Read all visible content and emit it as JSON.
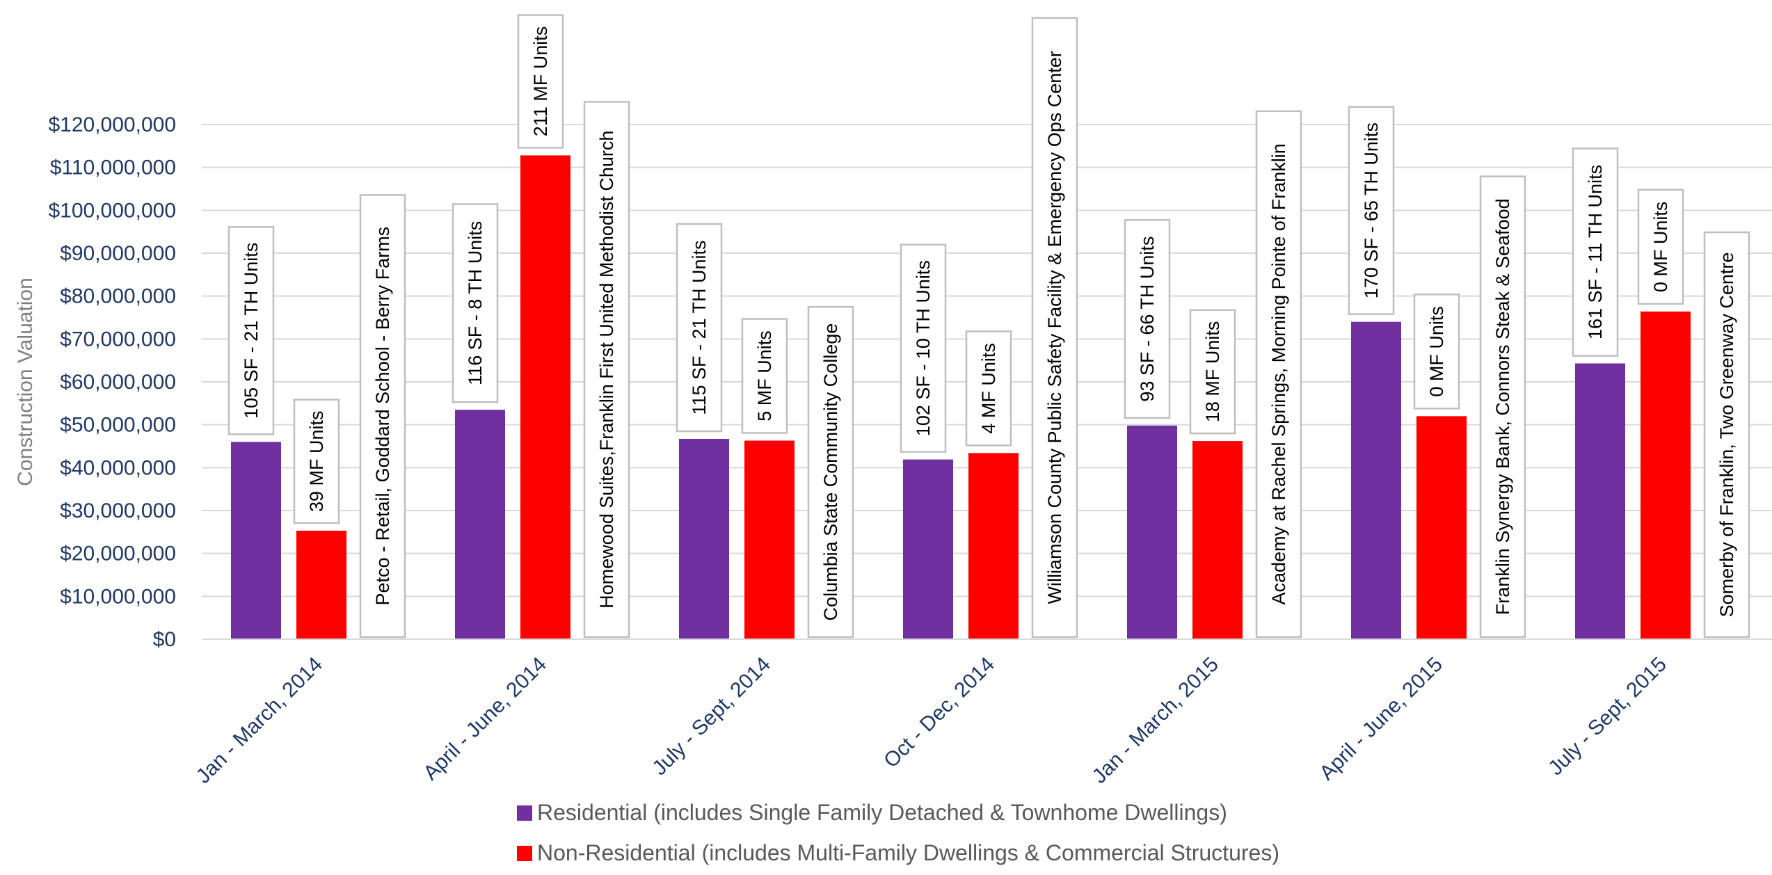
{
  "chart_data": {
    "type": "bar",
    "ylabel": "Construction Valuation",
    "ylim": [
      0,
      120000000
    ],
    "y_ticks": [
      "$0",
      "$10,000,000",
      "$20,000,000",
      "$30,000,000",
      "$40,000,000",
      "$50,000,000",
      "$60,000,000",
      "$70,000,000",
      "$80,000,000",
      "$90,000,000",
      "$100,000,000",
      "$110,000,000",
      "$120,000,000"
    ],
    "grid": true,
    "legend_position": "bottom",
    "categories": [
      "Jan - March, 2014",
      "April - June, 2014",
      "July - Sept, 2014",
      "Oct - Dec, 2014",
      "Jan - March, 2015",
      "April - June, 2015",
      "July - Sept, 2015"
    ],
    "series": [
      {
        "name": "Residential (includes Single Family Detached & Townhome Dwellings)",
        "color": "#7030A0",
        "values": [
          46000000,
          53500000,
          46700000,
          41900000,
          49800000,
          74000000,
          64300000
        ],
        "labels": [
          "105 SF - 21 TH Units",
          "116 SF - 8 TH Units",
          "115 SF - 21 TH Units",
          "102 SF - 10 TH Units",
          "93 SF - 66 TH Units",
          "170 SF - 65 TH Units",
          "161 SF - 11 TH Units"
        ]
      },
      {
        "name": "Non-Residential (includes Multi-Family Dwellings & Commercial Structures)",
        "color": "#FF0000",
        "values": [
          25300000,
          112800000,
          46300000,
          43400000,
          46200000,
          52000000,
          76400000
        ],
        "labels": [
          "39 MF Units",
          "211 MF Units",
          "5 MF Units",
          "4 MF Units",
          "18 MF Units",
          "0 MF Units",
          "0 MF Units"
        ]
      }
    ],
    "projects": [
      "Petco - Retail, Goddard School - Berry Farms",
      "Homewood Suites,Franklin First United Methodist Church",
      "Columbia State Community College",
      "Williamson County Public Safety Facility & Emergency Ops Center",
      "Academy at Rachel Springs, Morning Pointe of Franklin",
      "Franklin Synergy Bank, Connors Steak & Seafood",
      "Somerby of Franklin, Two Greenway Centre"
    ]
  }
}
